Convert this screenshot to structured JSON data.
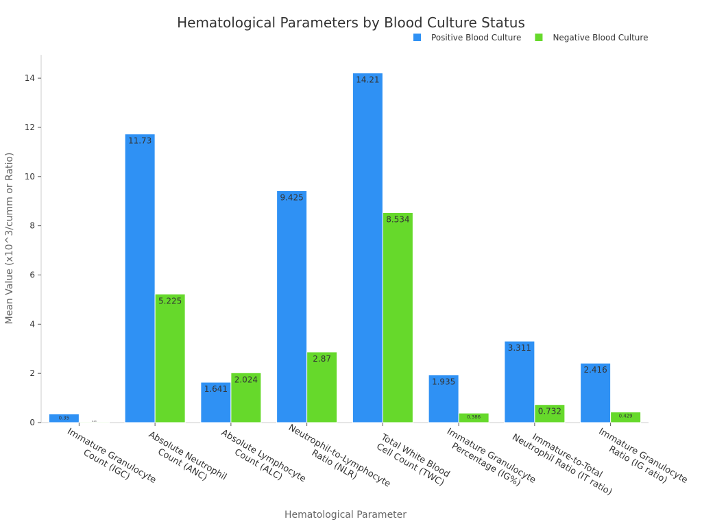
{
  "chart_data": {
    "type": "bar",
    "title": "Hematological Parameters by Blood Culture Status",
    "x_label": "Hematological Parameter",
    "y_label": "Mean Value (x10^3/cumm or Ratio)",
    "categories": [
      [
        "Immature Granulocyte",
        "Count (IGC)"
      ],
      [
        "Absolute Neutrophil",
        "Count (ANC)"
      ],
      [
        "Absolute Lymphocyte",
        "Count (ALC)"
      ],
      [
        "Neutrophil-to-Lymphocyte",
        "Ratio (NLR)"
      ],
      [
        "Total White Blood",
        "Cell Count (TWC)"
      ],
      [
        "Immature Granulocyte",
        "Percentage (IG%)"
      ],
      [
        "Immature-to-Total",
        "Neutrophil Ratio (IT ratio)"
      ],
      [
        "Immature Granulocyte",
        "Ratio (IG ratio)"
      ]
    ],
    "series": [
      {
        "name": "Positive Blood Culture",
        "color": "#2f91f4",
        "values": [
          0.35,
          11.73,
          1.641,
          9.425,
          14.21,
          1.935,
          3.311,
          2.416
        ]
      },
      {
        "name": "Negative Blood Culture",
        "color": "#66d92b",
        "values": [
          0.03,
          5.225,
          2.024,
          2.87,
          8.534,
          0.386,
          0.732,
          0.429
        ]
      }
    ],
    "ylim": [
      0,
      14.95
    ],
    "yticks": [
      0,
      2,
      4,
      6,
      8,
      10,
      12,
      14
    ],
    "legend": "top-right"
  }
}
